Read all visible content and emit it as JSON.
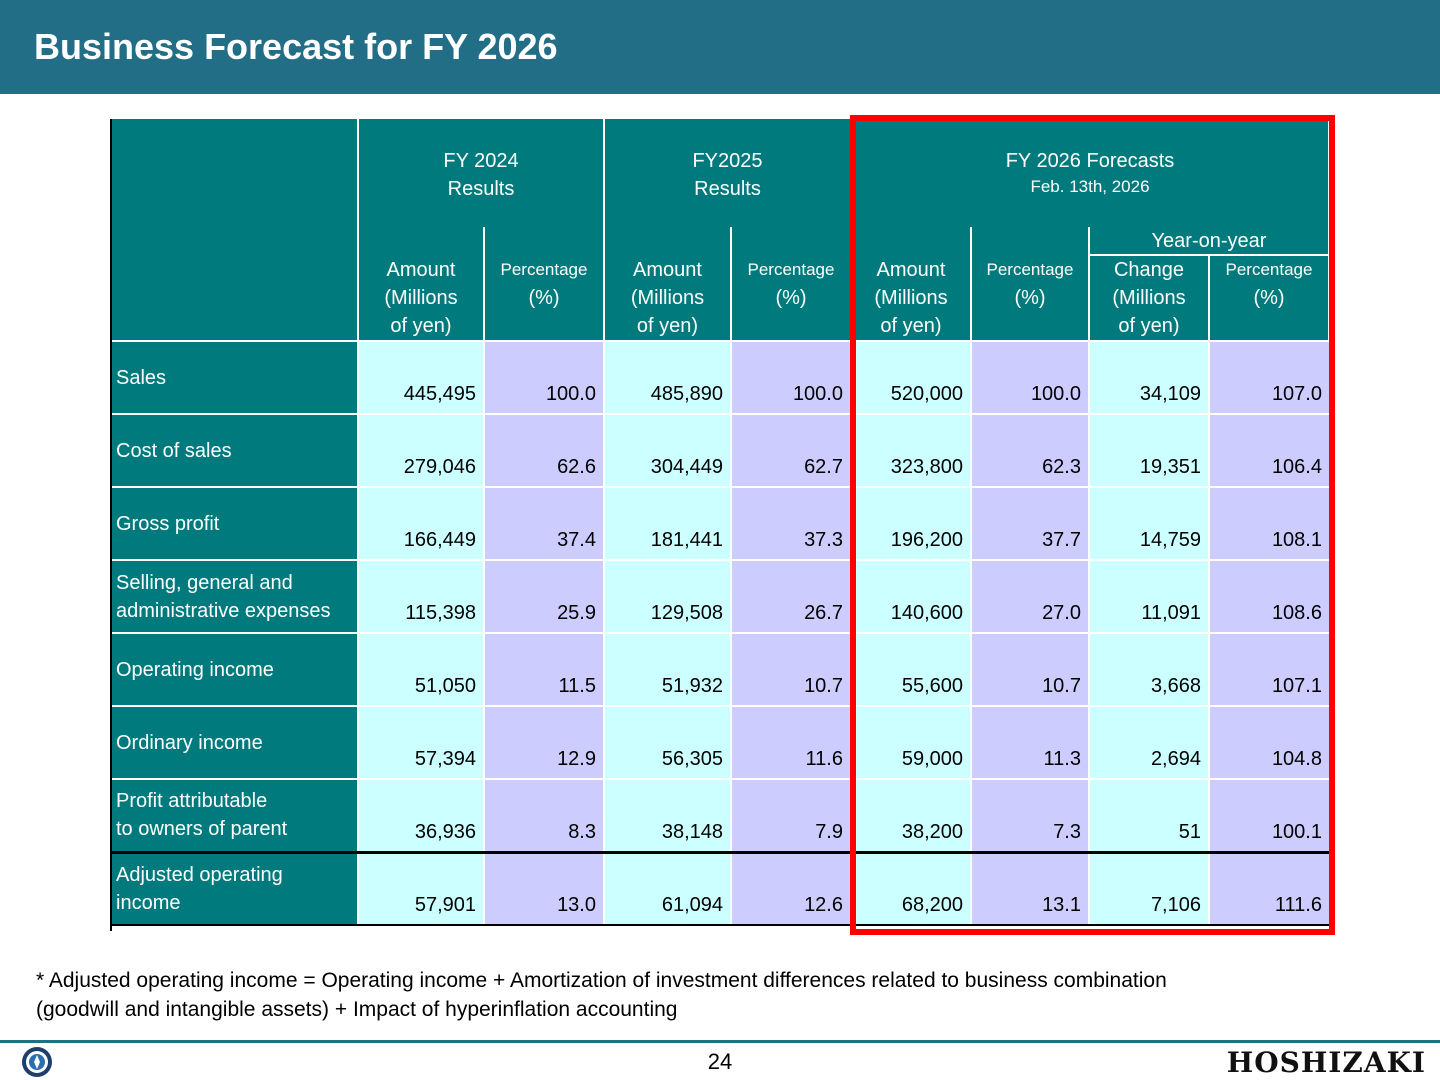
{
  "title": "Business Forecast for FY 2026",
  "header": {
    "fy2024": {
      "line1": "FY 2024",
      "line2": "Results"
    },
    "fy2025": {
      "line1": "FY2025",
      "line2": "Results"
    },
    "fy2026": {
      "line1": "FY 2026 Forecasts",
      "line2": "Feb. 13th, 2026"
    },
    "yoy": "Year-on-year",
    "amount": [
      "Amount",
      "(Millions",
      "of yen)"
    ],
    "percentage": [
      "Percentage",
      "(%)"
    ],
    "change": [
      "Change",
      "(Millions",
      "of yen)"
    ]
  },
  "rows": [
    {
      "label": "Sales",
      "values": [
        "445,495",
        "100.0",
        "485,890",
        "100.0",
        "520,000",
        "100.0",
        "34,109",
        "107.0"
      ]
    },
    {
      "label": "Cost of sales",
      "values": [
        "279,046",
        "62.6",
        "304,449",
        "62.7",
        "323,800",
        "62.3",
        "19,351",
        "106.4"
      ]
    },
    {
      "label": "Gross profit",
      "values": [
        "166,449",
        "37.4",
        "181,441",
        "37.3",
        "196,200",
        "37.7",
        "14,759",
        "108.1"
      ]
    },
    {
      "label": "Selling, general and\nadministrative expenses",
      "values": [
        "115,398",
        "25.9",
        "129,508",
        "26.7",
        "140,600",
        "27.0",
        "11,091",
        "108.6"
      ]
    },
    {
      "label": "Operating income",
      "values": [
        "51,050",
        "11.5",
        "51,932",
        "10.7",
        "55,600",
        "10.7",
        "3,668",
        "107.1"
      ]
    },
    {
      "label": "Ordinary income",
      "values": [
        "57,394",
        "12.9",
        "56,305",
        "11.6",
        "59,000",
        "11.3",
        "2,694",
        "104.8"
      ]
    },
    {
      "label": "Profit attributable\nto owners of parent",
      "values": [
        "36,936",
        "8.3",
        "38,148",
        "7.9",
        "38,200",
        "7.3",
        "51",
        "100.1"
      ]
    },
    {
      "label": "Adjusted operating\nincome",
      "values": [
        "57,901",
        "13.0",
        "61,094",
        "12.6",
        "68,200",
        "13.1",
        "7,106",
        "111.6"
      ]
    }
  ],
  "note": {
    "line1": "* Adjusted operating income = Operating income + Amortization of investment differences related to business combination",
    "line2": "(goodwill and intangible assets) + Impact of hyperinflation accounting"
  },
  "footer": {
    "page": "24",
    "brand": "HOSHIZAKI",
    "logo_icon": "company-emblem-icon"
  },
  "colors": {
    "title_bar": "#226e86",
    "header": "#007a7c",
    "amount_cell": "#ccffff",
    "percent_cell": "#ccccff",
    "highlight": "#ff0000"
  }
}
